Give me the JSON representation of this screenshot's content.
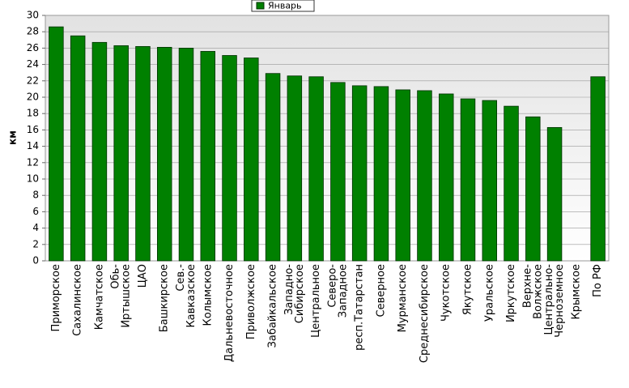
{
  "chart_data": {
    "type": "bar",
    "y_label": "км",
    "categories": [
      "Приморское",
      "Сахалинское",
      "Камчатское",
      "Обь-\nИртышское",
      "ЦАО",
      "Башкирское",
      "Сев.-\nКавказское",
      "Колымское",
      "Дальневосточное",
      "Приволжское",
      "Забайкальское",
      "Западно-\nСибирское",
      "Центральное",
      "Северо-\nЗападное",
      "респ.Татарстан",
      "Северное",
      "Мурманское",
      "Среднесибирское",
      "Чукотское",
      "Якутское",
      "Уральское",
      "Иркутское",
      "Верхне-\nВолжское",
      "Центрально-\nЧерноземное",
      "Крымское",
      "По РФ"
    ],
    "series": [
      {
        "name": "Январь",
        "color": "#008000",
        "values": [
          28.6,
          27.5,
          26.7,
          26.3,
          26.2,
          26.1,
          26.0,
          25.6,
          25.1,
          24.8,
          22.9,
          22.6,
          22.5,
          21.8,
          21.4,
          21.3,
          20.9,
          20.8,
          20.4,
          19.8,
          19.6,
          18.9,
          17.6,
          16.3,
          null,
          22.5
        ]
      }
    ],
    "ylim": [
      0,
      30
    ],
    "yticks": [
      0,
      2,
      4,
      6,
      8,
      10,
      12,
      14,
      16,
      18,
      20,
      22,
      24,
      26,
      28,
      30
    ],
    "grid": true
  }
}
